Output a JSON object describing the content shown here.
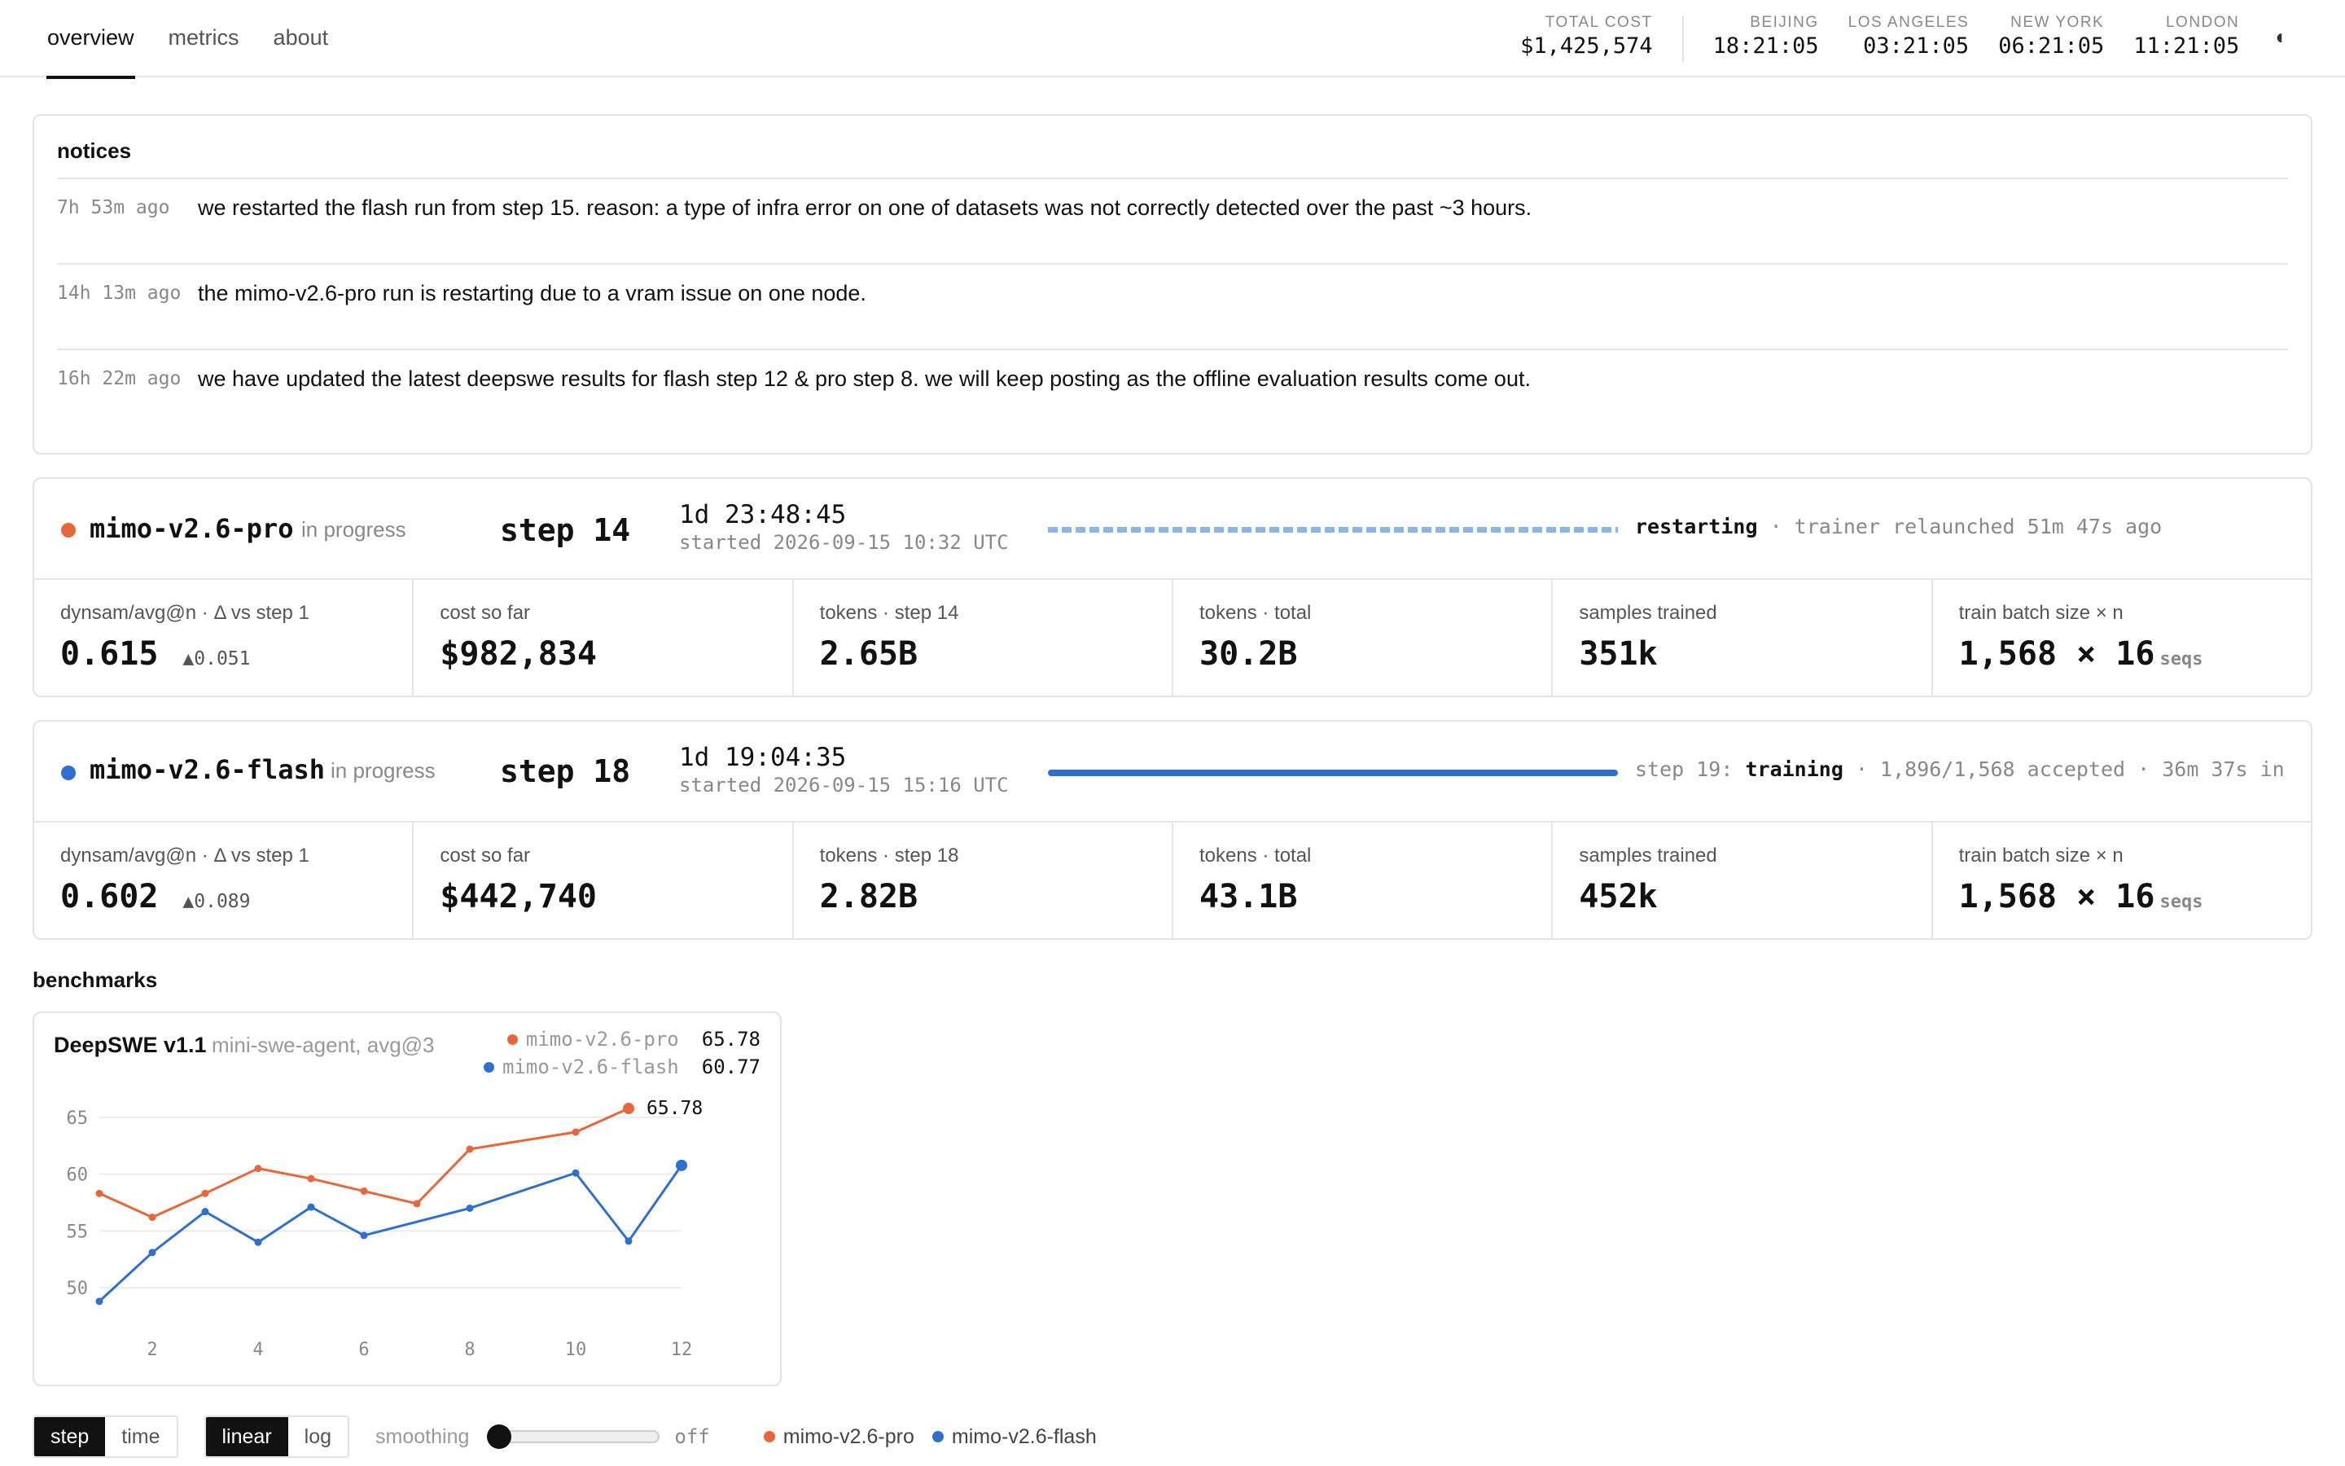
{
  "nav": {
    "items": [
      {
        "label": "overview",
        "active": true
      },
      {
        "label": "metrics",
        "active": false
      },
      {
        "label": "about",
        "active": false
      }
    ]
  },
  "header": {
    "total_cost_label": "TOTAL COST",
    "total_cost": "$1,425,574",
    "clocks": [
      {
        "city": "BEIJING",
        "time": "18:21:05"
      },
      {
        "city": "LOS ANGELES",
        "time": "03:21:05"
      },
      {
        "city": "NEW YORK",
        "time": "06:21:05"
      },
      {
        "city": "LONDON",
        "time": "11:21:05"
      }
    ],
    "theme_toggle_icon": "◐"
  },
  "notices": {
    "title": "notices",
    "items": [
      {
        "time": "7h 53m ago",
        "text": "we restarted the flash run from step 15. reason: a type of infra error on one of datasets was not correctly detected over the past ~3 hours."
      },
      {
        "time": "14h 13m ago",
        "text": "the mimo-v2.6-pro run is restarting due to a vram issue on one node."
      },
      {
        "time": "16h 22m ago",
        "text": "we have updated the latest deepswe results for flash step 12 & pro step 8. we will keep posting as the offline evaluation results come out."
      }
    ]
  },
  "runs": {
    "pro": {
      "color": "#e8673a",
      "name": "mimo-v2.6-pro",
      "status": "in progress",
      "step": "step 14",
      "elapsed": "1d 23:48:45",
      "started": "started 2026-09-15 10:32 UTC",
      "note_strong": "restarting",
      "note_rest": " · trainer relaunched 51m 47s ago",
      "metrics": {
        "m0_label": "dynsam/avg@n · Δ vs step 1",
        "m0_value": "0.615",
        "m0_delta": "▲0.051",
        "m1_label": "cost so far",
        "m1_value": "$982,834",
        "m2_label": "tokens · step 14",
        "m2_value": "2.65B",
        "m3_label": "tokens · total",
        "m3_value": "30.2B",
        "m4_label": "samples trained",
        "m4_value": "351k",
        "m5_label": "train batch size × n",
        "m5_value": "1,568 × 16",
        "m5_unit": "seqs"
      }
    },
    "flash": {
      "color": "#2f6fcf",
      "name": "mimo-v2.6-flash",
      "status": "in progress",
      "step": "step 18",
      "elapsed": "1d 19:04:35",
      "started": "started 2026-09-15 15:16 UTC",
      "note_pre": "step 19: ",
      "note_strong": "training",
      "note_rest": " · 1,896/1,568 accepted · 36m 37s in",
      "metrics": {
        "m0_label": "dynsam/avg@n · Δ vs step 1",
        "m0_value": "0.602",
        "m0_delta": "▲0.089",
        "m1_label": "cost so far",
        "m1_value": "$442,740",
        "m2_label": "tokens · step 18",
        "m2_value": "2.82B",
        "m3_label": "tokens · total",
        "m3_value": "43.1B",
        "m4_label": "samples trained",
        "m4_value": "452k",
        "m5_label": "train batch size × n",
        "m5_value": "1,568 × 16",
        "m5_unit": "seqs"
      }
    }
  },
  "benchmarks": {
    "title": "benchmarks",
    "card_title": "DeepSWE v1.1",
    "card_subtitle": "mini-swe-agent, avg@3",
    "legend": [
      {
        "name": "mimo-v2.6-pro",
        "value": "65.78",
        "color": "#e8673a"
      },
      {
        "name": "mimo-v2.6-flash",
        "value": "60.77",
        "color": "#2f6fcf"
      }
    ]
  },
  "chart_data": {
    "type": "line",
    "title": "DeepSWE v1.1",
    "subtitle": "mini-swe-agent, avg@3",
    "xlabel": "",
    "ylabel": "",
    "xlim": [
      1,
      12
    ],
    "ylim": [
      48.5,
      67
    ],
    "xticks": [
      2,
      4,
      6,
      8,
      10,
      12
    ],
    "yticks": [
      50,
      55,
      60,
      65
    ],
    "grid": true,
    "series": [
      {
        "name": "mimo-v2.6-pro",
        "color": "#e8673a",
        "x": [
          1,
          2,
          3,
          4,
          5,
          6,
          7,
          8,
          10,
          11
        ],
        "y": [
          58.3,
          56.2,
          58.3,
          60.5,
          59.6,
          58.5,
          57.4,
          62.2,
          63.7,
          65.78
        ],
        "end_label": "65.78"
      },
      {
        "name": "mimo-v2.6-flash",
        "color": "#2f6fcf",
        "x": [
          1,
          2,
          3,
          4,
          5,
          6,
          8,
          10,
          11,
          12
        ],
        "y": [
          48.8,
          53.1,
          56.7,
          54.0,
          57.1,
          54.6,
          57.0,
          60.1,
          54.1,
          60.77
        ]
      }
    ]
  },
  "controls": {
    "axis_step": "step",
    "axis_time": "time",
    "scale_linear": "linear",
    "scale_log": "log",
    "smoothing_label": "smoothing",
    "smoothing_value": "off",
    "legend": [
      {
        "name": "mimo-v2.6-pro",
        "color": "#e8673a"
      },
      {
        "name": "mimo-v2.6-flash",
        "color": "#2f6fcf"
      }
    ]
  }
}
